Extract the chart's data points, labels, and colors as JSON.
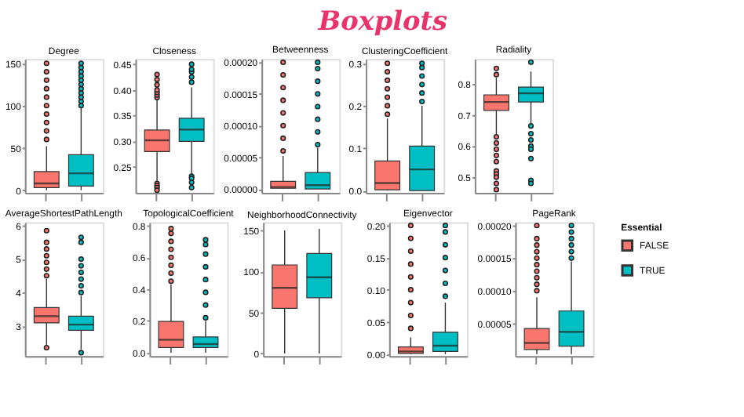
{
  "chart_data": [
    {
      "type": "other",
      "title": "Boxplots"
    },
    {
      "type": "box",
      "title": "Degree",
      "categories": [
        null,
        null
      ],
      "ylim": [
        -3,
        155
      ],
      "yticks": [
        0,
        50,
        100,
        150
      ],
      "tick_labels": "y",
      "grid": false,
      "legend": false,
      "series": [
        {
          "color": "#f8766d",
          "boxes": [
            {
              "low": 0,
              "q1": 3,
              "median": 8,
              "q3": 22,
              "high": 52,
              "outliers": [
                60,
                70,
                80,
                90,
                100,
                110,
                120,
                130,
                140,
                150
              ]
            },
            null
          ]
        },
        {
          "color": "#00bfc4",
          "boxes": [
            null,
            {
              "low": 0,
              "q1": 5,
              "median": 20,
              "q3": 42,
              "high": 97,
              "outliers": [
                100,
                105,
                110,
                115,
                120,
                125,
                130,
                135,
                140,
                145,
                150
              ]
            }
          ]
        }
      ]
    },
    {
      "type": "box",
      "title": "Closeness",
      "categories": [
        null,
        null
      ],
      "ylim": [
        0.2,
        0.46
      ],
      "yticks": [
        {
          "value": 0.25,
          "label": "0.25"
        },
        {
          "value": 0.3,
          "label": "0.30"
        },
        {
          "value": 0.35,
          "label": "0.35"
        },
        {
          "value": 0.4,
          "label": "0.40"
        },
        {
          "value": 0.45,
          "label": "0.45"
        }
      ],
      "tick_labels": "y",
      "grid": false,
      "legend": false,
      "series": [
        {
          "color": "#f8766d",
          "boxes": [
            {
              "low": 0.222,
              "q1": 0.28,
              "median": 0.302,
              "q3": 0.322,
              "high": 0.38,
              "outliers": [
                0.385,
                0.39,
                0.395,
                0.4,
                0.41,
                0.42,
                0.43,
                0.218,
                0.214,
                0.21,
                0.205
              ]
            },
            null
          ]
        },
        {
          "color": "#00bfc4",
          "boxes": [
            null,
            {
              "low": 0.235,
              "q1": 0.3,
              "median": 0.323,
              "q3": 0.345,
              "high": 0.405,
              "outliers": [
                0.415,
                0.425,
                0.435,
                0.44,
                0.45,
                0.232,
                0.228,
                0.22,
                0.21
              ]
            }
          ]
        }
      ]
    },
    {
      "type": "box",
      "title": "Betweenness",
      "categories": [
        null,
        null
      ],
      "ylim": [
        -6e-06,
        0.000205
      ],
      "yticks": [
        {
          "value": 0,
          "label": "0.00000"
        },
        {
          "value": 5e-05,
          "label": "0.00005"
        },
        {
          "value": 0.0001,
          "label": "0.00010"
        },
        {
          "value": 0.00015,
          "label": "0.00015"
        },
        {
          "value": 0.0002,
          "label": "0.00020"
        }
      ],
      "tick_labels": "y",
      "grid": false,
      "legend": false,
      "series": [
        {
          "color": "#f8766d",
          "boxes": [
            {
              "low": 0,
              "q1": 1e-06,
              "median": 3e-06,
              "q3": 1.2e-05,
              "high": 5.2e-05,
              "outliers": [
                6e-05,
                8e-05,
                0.0001,
                0.00012,
                0.00014,
                0.00016,
                0.00018,
                0.0002
              ]
            },
            null
          ]
        },
        {
          "color": "#00bfc4",
          "boxes": [
            null,
            {
              "low": 0,
              "q1": 0,
              "median": 6e-06,
              "q3": 2.6e-05,
              "high": 6.5e-05,
              "outliers": [
                7e-05,
                9e-05,
                0.00011,
                0.00013,
                0.00015,
                0.00017,
                0.00019,
                0.0002
              ]
            }
          ]
        }
      ]
    },
    {
      "type": "box",
      "title": "ClusteringCoefficient",
      "categories": [
        null,
        null
      ],
      "ylim": [
        -0.005,
        0.31
      ],
      "yticks": [
        {
          "value": 0,
          "label": "0.0"
        },
        0.1,
        0.2,
        0.3
      ],
      "tick_labels": "y",
      "grid": false,
      "legend": false,
      "series": [
        {
          "color": "#f8766d",
          "boxes": [
            {
              "low": 0,
              "q1": 0.002,
              "median": 0.018,
              "q3": 0.07,
              "high": 0.17,
              "outliers": [
                0.18,
                0.2,
                0.22,
                0.24,
                0.26,
                0.28,
                0.3
              ]
            },
            null
          ]
        },
        {
          "color": "#00bfc4",
          "boxes": [
            null,
            {
              "low": 0,
              "q1": 0,
              "median": 0.05,
              "q3": 0.105,
              "high": 0.2,
              "outliers": [
                0.21,
                0.23,
                0.25,
                0.27,
                0.29,
                0.3
              ]
            }
          ]
        }
      ]
    },
    {
      "type": "box",
      "title": "Radiality",
      "categories": [
        null,
        null
      ],
      "ylim": [
        0.45,
        0.88
      ],
      "yticks": [
        0.5,
        0.6,
        0.7,
        0.8
      ],
      "tick_labels": "y",
      "grid": false,
      "legend": false,
      "series": [
        {
          "color": "#f8766d",
          "boxes": [
            {
              "low": 0.635,
              "q1": 0.715,
              "median": 0.742,
              "q3": 0.765,
              "high": 0.82,
              "outliers": [
                0.83,
                0.85,
                0.63,
                0.61,
                0.59,
                0.57,
                0.55,
                0.52,
                0.51,
                0.5,
                0.48,
                0.46
              ]
            },
            null
          ]
        },
        {
          "color": "#00bfc4",
          "boxes": [
            null,
            {
              "low": 0.67,
              "q1": 0.742,
              "median": 0.77,
              "q3": 0.79,
              "high": 0.84,
              "outliers": [
                0.87,
                0.665,
                0.64,
                0.62,
                0.6,
                0.59,
                0.56,
                0.49,
                0.48
              ]
            }
          ]
        }
      ]
    },
    {
      "type": "box",
      "title": "AverageShortestPathLength",
      "categories": [
        null,
        null
      ],
      "ylim": [
        2.1,
        6.1
      ],
      "yticks": [
        3,
        4,
        5,
        6
      ],
      "tick_labels": "y",
      "grid": false,
      "legend": false,
      "series": [
        {
          "color": "#f8766d",
          "boxes": [
            {
              "low": 2.41,
              "q1": 3.09,
              "median": 3.29,
              "q3": 3.55,
              "high": 4.4,
              "outliers": [
                4.5,
                4.7,
                4.9,
                5.1,
                5.3,
                5.5,
                5.85,
                2.35
              ]
            },
            null
          ]
        },
        {
          "color": "#00bfc4",
          "boxes": [
            null,
            {
              "low": 2.3,
              "q1": 2.87,
              "median": 3.04,
              "q3": 3.29,
              "high": 3.9,
              "outliers": [
                4.0,
                4.2,
                4.4,
                4.6,
                4.8,
                5.0,
                5.5,
                5.65,
                2.2
              ]
            }
          ]
        }
      ]
    },
    {
      "type": "box",
      "title": "TopologicalCoefficient",
      "categories": [
        null,
        null
      ],
      "ylim": [
        -0.02,
        0.82
      ],
      "yticks": [
        {
          "value": 0,
          "label": "0.0"
        },
        0.2,
        0.4,
        0.6,
        0.8
      ],
      "tick_labels": "y",
      "grid": false,
      "legend": false,
      "series": [
        {
          "color": "#f8766d",
          "boxes": [
            {
              "low": 0,
              "q1": 0.033,
              "median": 0.082,
              "q3": 0.197,
              "high": 0.43,
              "outliers": [
                0.45,
                0.5,
                0.55,
                0.6,
                0.65,
                0.7,
                0.75,
                0.78
              ]
            },
            null
          ]
        },
        {
          "color": "#00bfc4",
          "boxes": [
            null,
            {
              "low": 0,
              "q1": 0.033,
              "median": 0.055,
              "q3": 0.1,
              "high": 0.2,
              "outliers": [
                0.22,
                0.3,
                0.38,
                0.46,
                0.54,
                0.62,
                0.68,
                0.71
              ]
            }
          ]
        }
      ]
    },
    {
      "type": "box",
      "title": "NeighborhoodConnectivity",
      "categories": [
        null,
        null
      ],
      "ylim": [
        -3,
        160
      ],
      "yticks": [
        0,
        50,
        100,
        150
      ],
      "tick_labels": "y",
      "grid": false,
      "legend": false,
      "series": [
        {
          "color": "#f8766d",
          "boxes": [
            {
              "low": 0,
              "q1": 55,
              "median": 80,
              "q3": 108,
              "high": 150
            },
            null
          ]
        },
        {
          "color": "#00bfc4",
          "boxes": [
            null,
            {
              "low": 0,
              "q1": 68,
              "median": 93,
              "q3": 122,
              "high": 152
            }
          ]
        }
      ]
    },
    {
      "type": "box",
      "title": "Eigenvector",
      "categories": [
        null,
        null
      ],
      "ylim": [
        -0.003,
        0.205
      ],
      "yticks": [
        {
          "value": 0,
          "label": "0.00"
        },
        {
          "value": 0.05,
          "label": "0.05"
        },
        {
          "value": 0.1,
          "label": "0.10"
        },
        {
          "value": 0.15,
          "label": "0.15"
        },
        {
          "value": 0.2,
          "label": "0.20"
        }
      ],
      "tick_labels": "y",
      "grid": false,
      "legend": false,
      "series": [
        {
          "color": "#f8766d",
          "boxes": [
            {
              "low": 0,
              "q1": 0.001,
              "median": 0.004,
              "q3": 0.011,
              "high": 0.026,
              "outliers": [
                0.04,
                0.06,
                0.08,
                0.1,
                0.12,
                0.14,
                0.16,
                0.18,
                0.2
              ]
            },
            null
          ]
        },
        {
          "color": "#00bfc4",
          "boxes": [
            null,
            {
              "low": 0,
              "q1": 0.004,
              "median": 0.013,
              "q3": 0.034,
              "high": 0.08,
              "outliers": [
                0.09,
                0.11,
                0.13,
                0.15,
                0.17,
                0.19,
                0.2
              ]
            }
          ]
        }
      ]
    },
    {
      "type": "box",
      "title": "PageRank",
      "categories": [
        null,
        null
      ],
      "ylim": [
        0,
        0.000205
      ],
      "yticks": [
        {
          "value": 5e-05,
          "label": "0.00005"
        },
        {
          "value": 0.0001,
          "label": "0.00010"
        },
        {
          "value": 0.00015,
          "label": "0.00015"
        },
        {
          "value": 0.0002,
          "label": "0.00020"
        }
      ],
      "tick_labels": "y",
      "grid": false,
      "legend": "right",
      "legend_title": "Essential",
      "series": [
        {
          "name": "FALSE",
          "color": "#f8766d",
          "boxes": [
            {
              "low": 3e-06,
              "q1": 1e-05,
              "median": 2e-05,
              "q3": 4.2e-05,
              "high": 9e-05,
              "outliers": [
                0.0001,
                0.00011,
                0.00012,
                0.00013,
                0.00014,
                0.00015,
                0.00016,
                0.00017,
                0.00018,
                0.0002
              ]
            },
            null
          ]
        },
        {
          "name": "TRUE",
          "color": "#00bfc4",
          "boxes": [
            null,
            {
              "low": 3e-06,
              "q1": 1.5e-05,
              "median": 3.7e-05,
              "q3": 6.9e-05,
              "high": 0.000145,
              "outliers": [
                0.00015,
                0.00016,
                0.00017,
                0.00018,
                0.00019,
                0.0002
              ]
            }
          ]
        }
      ]
    }
  ]
}
